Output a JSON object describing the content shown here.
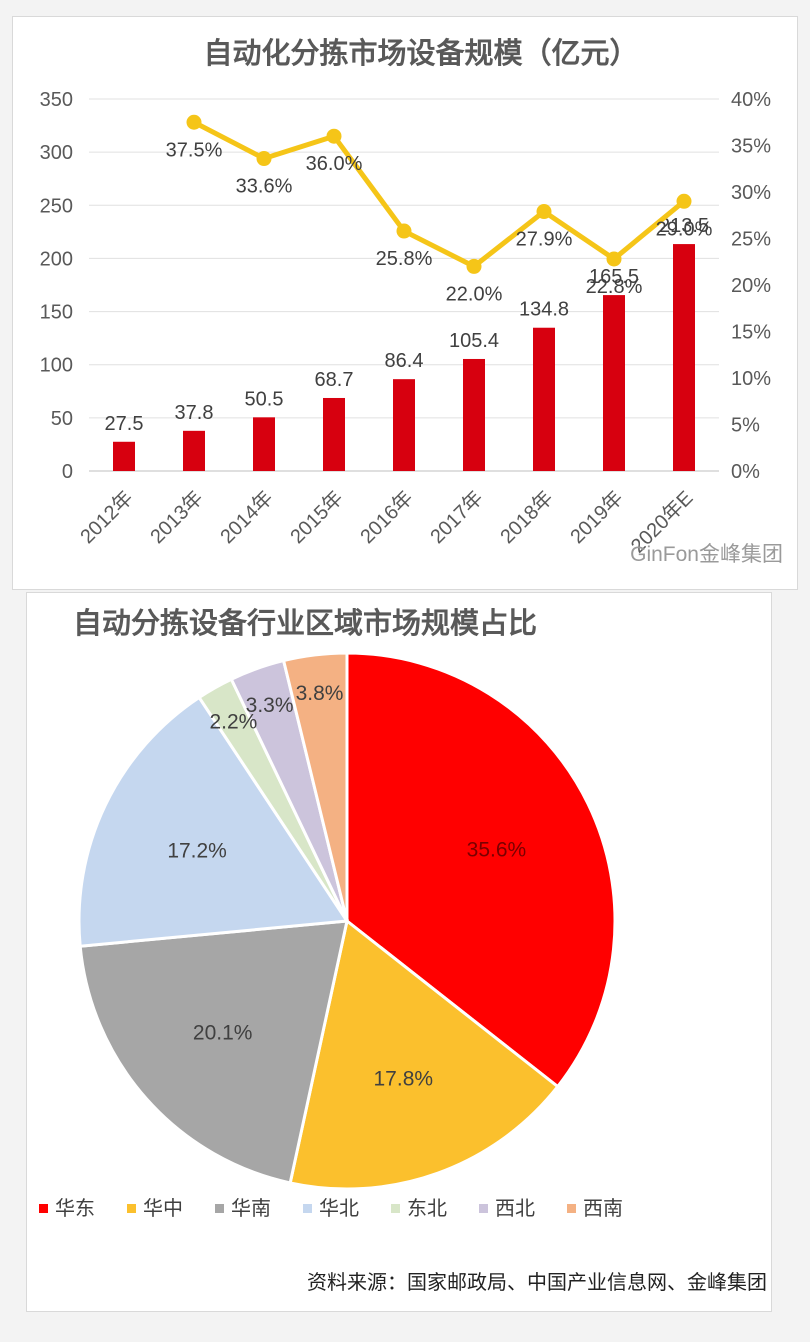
{
  "chart_data": [
    {
      "type": "bar",
      "title": "自动化分拣市场设备规模（亿元）",
      "categories": [
        "2012年",
        "2013年",
        "2014年",
        "2015年",
        "2016年",
        "2017年",
        "2018年",
        "2019年",
        "2020年E"
      ],
      "series": [
        {
          "type": "bar",
          "axis": "left",
          "color": "#d7000f",
          "values": [
            27.5,
            37.8,
            50.5,
            68.7,
            86.4,
            105.4,
            134.8,
            165.5,
            213.5
          ],
          "labels": [
            "27.5",
            "37.8",
            "50.5",
            "68.7",
            "86.4",
            "105.4",
            "134.8",
            "165.5",
            "213.5"
          ]
        },
        {
          "type": "line",
          "axis": "right",
          "color": "#f5c518",
          "values": [
            null,
            37.5,
            33.6,
            36.0,
            25.8,
            22.0,
            27.9,
            22.8,
            29.0
          ],
          "labels": [
            "",
            "37.5%",
            "33.6%",
            "36.0%",
            "25.8%",
            "22.0%",
            "27.9%",
            "22.8%",
            "29.0%"
          ]
        }
      ],
      "ylim": [
        0,
        350
      ],
      "y_ticks": [
        "0",
        "50",
        "100",
        "150",
        "200",
        "250",
        "300",
        "350"
      ],
      "y2lim": [
        0,
        40
      ],
      "y2_ticks": [
        "0%",
        "5%",
        "10%",
        "15%",
        "20%",
        "25%",
        "30%",
        "35%",
        "40%"
      ],
      "grid": true,
      "xlabel": "",
      "ylabel": ""
    },
    {
      "type": "pie",
      "title": "自动分拣设备行业区域市场规模占比",
      "slices": [
        {
          "name": "华东",
          "value": 35.6,
          "label": "35.6%",
          "color": "#ff0000"
        },
        {
          "name": "华中",
          "value": 17.8,
          "label": "17.8%",
          "color": "#fbc02d"
        },
        {
          "name": "华南",
          "value": 20.1,
          "label": "20.1%",
          "color": "#a6a6a6"
        },
        {
          "name": "华北",
          "value": 17.2,
          "label": "17.2%",
          "color": "#c5d7ef"
        },
        {
          "name": "东北",
          "value": 2.2,
          "label": "2.2%",
          "color": "#d8e6c8"
        },
        {
          "name": "西北",
          "value": 3.3,
          "label": "3.3%",
          "color": "#ccc4dc"
        },
        {
          "name": "西南",
          "value": 3.8,
          "label": "3.8%",
          "color": "#f4b183"
        }
      ],
      "legend": "bottom"
    }
  ],
  "watermark": "GinFon金峰集团",
  "source": "资料来源：国家邮政局、中国产业信息网、金峰集团"
}
